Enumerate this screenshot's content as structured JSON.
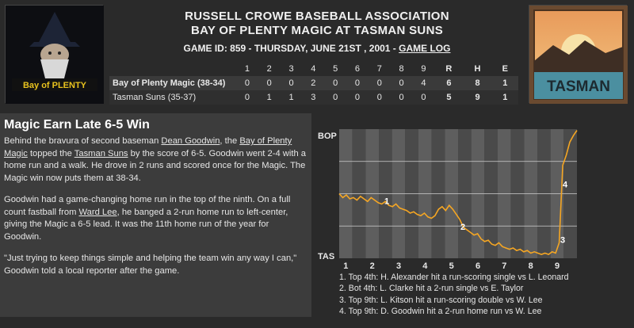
{
  "header": {
    "title_line1": "RUSSELL CROWE BASEBALL ASSOCIATION",
    "title_line2": "BAY OF PLENTY MAGIC AT TASMAN SUNS",
    "subtitle_prefix": "GAME ID: 859 - THURSDAY, JUNE 21ST , 2001 - ",
    "game_log_link": "GAME LOG",
    "logo_left_text": "Bay of PLENTY",
    "logo_right_text": "TASMAN"
  },
  "linescore": {
    "innings": [
      "1",
      "2",
      "3",
      "4",
      "5",
      "6",
      "7",
      "8",
      "9"
    ],
    "rhe_headers": [
      "R",
      "H",
      "E"
    ],
    "teams": [
      {
        "name": "Bay of Plenty Magic (38-34)",
        "innings": [
          "0",
          "0",
          "0",
          "2",
          "0",
          "0",
          "0",
          "0",
          "4"
        ],
        "rhe": [
          "6",
          "8",
          "1"
        ]
      },
      {
        "name": "Tasman Suns (35-37)",
        "innings": [
          "0",
          "1",
          "1",
          "3",
          "0",
          "0",
          "0",
          "0",
          "0"
        ],
        "rhe": [
          "5",
          "9",
          "1"
        ]
      }
    ]
  },
  "story": {
    "headline": "Magic Earn Late 6-5 Win",
    "p1_a": "Behind the bravura of second baseman ",
    "p1_link1": "Dean Goodwin",
    "p1_b": ", the ",
    "p1_link2": "Bay of Plenty Magic",
    "p1_c": " topped the ",
    "p1_link3": "Tasman Suns",
    "p1_d": " by the score of 6-5. Goodwin went 2-4 with a home run and a walk. He drove in 2 runs and scored once for the Magic. The Magic win now puts them at 38-34.",
    "p2_a": "Goodwin had a game-changing home run in the top of the ninth. On a full count fastball from ",
    "p2_link": "Ward Lee",
    "p2_b": ", he banged a 2-run home run to left-center, giving the Magic a 6-5 lead. It was the 11th home run of the year for Goodwin.",
    "p3": "\"Just trying to keep things simple and helping the team win any way I can,\" Goodwin told a local reporter after the game."
  },
  "chart": {
    "top_label": "BOP",
    "bottom_label": "TAS",
    "line_color": "#f5a623",
    "inning_labels": [
      "1",
      "2",
      "3",
      "4",
      "5",
      "6",
      "7",
      "8",
      "9"
    ],
    "markers": [
      "1",
      "2",
      "3",
      "4"
    ],
    "notes": [
      "1. Top 4th: H. Alexander hit a run-scoring single vs L. Leonard",
      "2. Bot 4th: L. Clarke hit a 2-run single vs E. Taylor",
      "3. Top 9th: L. Kitson hit a run-scoring double vs W. Lee",
      "4. Top 9th: D. Goodwin hit a 2-run home run vs W. Lee"
    ],
    "win_prob_bop": [
      0.5,
      0.47,
      0.49,
      0.46,
      0.47,
      0.45,
      0.48,
      0.46,
      0.44,
      0.47,
      0.45,
      0.43,
      0.42,
      0.44,
      0.41,
      0.4,
      0.42,
      0.39,
      0.38,
      0.37,
      0.35,
      0.36,
      0.34,
      0.33,
      0.35,
      0.32,
      0.31,
      0.33,
      0.38,
      0.4,
      0.37,
      0.41,
      0.38,
      0.34,
      0.3,
      0.24,
      0.22,
      0.2,
      0.18,
      0.19,
      0.15,
      0.13,
      0.14,
      0.11,
      0.1,
      0.12,
      0.09,
      0.08,
      0.07,
      0.08,
      0.06,
      0.07,
      0.05,
      0.06,
      0.04,
      0.05,
      0.04,
      0.03,
      0.04,
      0.03,
      0.05,
      0.04,
      0.12,
      0.72,
      0.8,
      0.9,
      0.95,
      0.99
    ]
  }
}
